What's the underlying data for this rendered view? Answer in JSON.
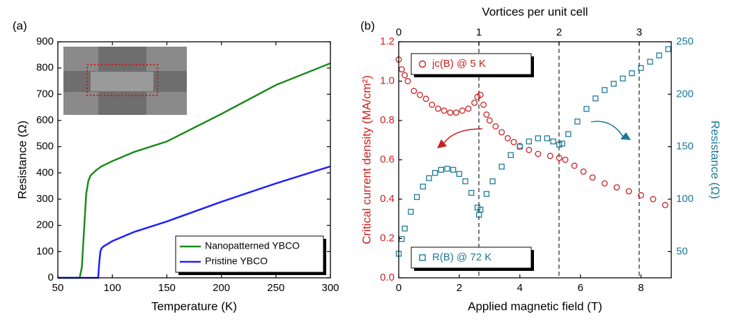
{
  "chart_data": [
    {
      "type": "line",
      "panel_label": "(a)",
      "xlabel": "Temperature (K)",
      "ylabel": "Resistance (Ω)",
      "xlim": [
        50,
        300
      ],
      "xticks": [
        50,
        100,
        150,
        200,
        250,
        300
      ],
      "ylim": [
        0,
        900
      ],
      "yticks": [
        0,
        100,
        200,
        300,
        400,
        500,
        600,
        700,
        800,
        900
      ],
      "legend_position": "lower right",
      "series": [
        {
          "name": "Nanopatterned YBCO",
          "color": "#1b8a1b",
          "x": [
            50,
            70,
            72,
            74,
            76,
            78,
            80,
            85,
            90,
            100,
            120,
            150,
            200,
            250,
            300
          ],
          "values": [
            0,
            0,
            40,
            180,
            320,
            370,
            390,
            410,
            425,
            445,
            480,
            520,
            625,
            735,
            818
          ]
        },
        {
          "name": "Pristine YBCO",
          "color": "#1f1fff",
          "x": [
            50,
            87,
            88,
            89,
            90,
            92,
            100,
            120,
            150,
            200,
            250,
            300
          ],
          "values": [
            0,
            0,
            60,
            100,
            112,
            120,
            140,
            175,
            215,
            290,
            360,
            425
          ]
        }
      ]
    },
    {
      "type": "scatter",
      "panel_label": "(b)",
      "xlabel": "Applied magnetic field (T)",
      "x2label": "Vortices per unit cell",
      "ylabel": "Critical current density (MA/cm²)",
      "y2label": "Resistance (Ω)",
      "xlim": [
        0,
        9
      ],
      "xticks": [
        0,
        2,
        4,
        6,
        8
      ],
      "x2lim": [
        0,
        3.4
      ],
      "x2ticks": [
        0,
        1,
        2,
        3
      ],
      "ylim": [
        0,
        1.2
      ],
      "yticks": [
        {
          "value": 0,
          "label": "0.0"
        },
        0.2,
        0.4,
        0.6,
        0.8,
        {
          "value": 1,
          "label": "1.0"
        },
        1.2
      ],
      "y2lim": [
        25,
        250
      ],
      "y2ticks": [
        50,
        100,
        150,
        200,
        250
      ],
      "series": [
        {
          "name": "jc(B) @ 5 K",
          "color": "#cc1f1f",
          "marker": "circle",
          "legend_position": "upper left",
          "x": [
            0,
            0.1,
            0.2,
            0.3,
            0.5,
            0.7,
            0.9,
            1.1,
            1.3,
            1.5,
            1.7,
            1.9,
            2.1,
            2.3,
            2.5,
            2.6,
            2.7,
            2.8,
            2.9,
            3.0,
            3.2,
            3.4,
            3.6,
            3.8,
            4.0,
            4.3,
            4.6,
            5.0,
            5.3,
            5.5,
            5.8,
            6.1,
            6.4,
            6.8,
            7.2,
            7.6,
            8.0,
            8.4,
            8.8
          ],
          "values": [
            1.11,
            1.06,
            1.03,
            1.0,
            0.95,
            0.93,
            0.91,
            0.88,
            0.86,
            0.85,
            0.84,
            0.84,
            0.85,
            0.86,
            0.89,
            0.92,
            0.93,
            0.88,
            0.83,
            0.8,
            0.77,
            0.74,
            0.71,
            0.69,
            0.67,
            0.65,
            0.63,
            0.62,
            0.61,
            0.6,
            0.57,
            0.54,
            0.51,
            0.48,
            0.46,
            0.44,
            0.42,
            0.4,
            0.37
          ]
        },
        {
          "name": "R(B) @ 72 K",
          "color": "#1a7a96",
          "marker": "square",
          "axis": "y2",
          "legend_position": "lower left",
          "x": [
            0,
            0.1,
            0.2,
            0.4,
            0.6,
            0.8,
            1.0,
            1.2,
            1.4,
            1.6,
            1.8,
            2.0,
            2.2,
            2.4,
            2.6,
            2.65,
            2.7,
            2.9,
            3.1,
            3.4,
            3.7,
            4.0,
            4.3,
            4.6,
            4.9,
            5.1,
            5.3,
            5.4,
            5.6,
            5.9,
            6.2,
            6.5,
            6.8,
            7.1,
            7.4,
            7.7,
            8.0,
            8.3,
            8.6,
            8.9
          ],
          "values": [
            48,
            62,
            72,
            88,
            102,
            112,
            120,
            125,
            128,
            129,
            128,
            124,
            117,
            106,
            92,
            85,
            90,
            105,
            117,
            131,
            142,
            150,
            155,
            158,
            158,
            155,
            152,
            153,
            162,
            174,
            186,
            196,
            204,
            210,
            215,
            220,
            225,
            231,
            237,
            243
          ]
        }
      ]
    }
  ]
}
